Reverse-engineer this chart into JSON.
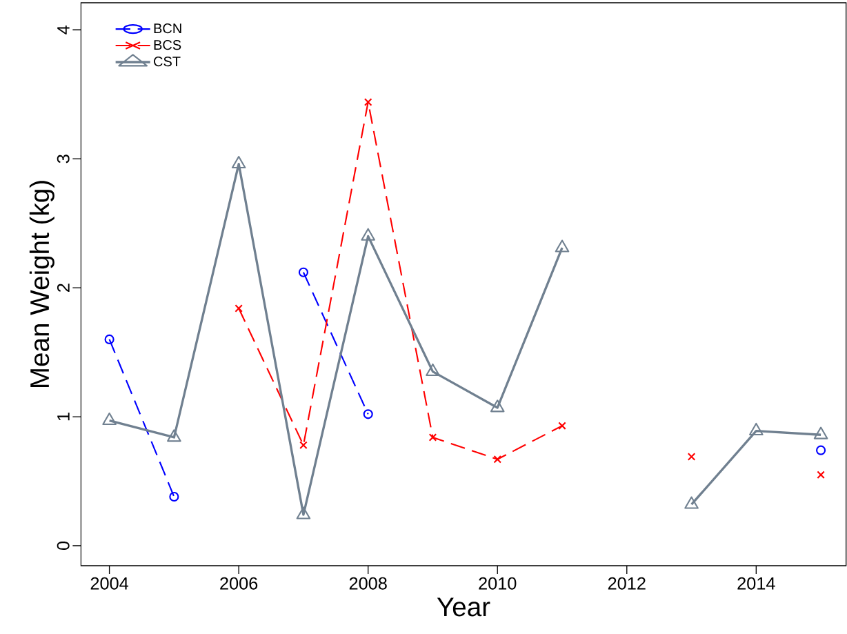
{
  "chart_data": {
    "type": "line",
    "xlabel": "Year",
    "ylabel": "Mean Weight (kg)",
    "x": [
      2004,
      2005,
      2006,
      2007,
      2008,
      2009,
      2010,
      2011,
      2012,
      2013,
      2014,
      2015
    ],
    "series": [
      {
        "name": "BCN",
        "color": "#0000ff",
        "marker": "circle",
        "line_style": "dashed",
        "values": [
          1.6,
          0.38,
          null,
          2.12,
          1.02,
          null,
          null,
          null,
          null,
          null,
          null,
          0.74
        ]
      },
      {
        "name": "BCS",
        "color": "#ff0000",
        "marker": "cross",
        "line_style": "dashed",
        "values": [
          null,
          null,
          1.84,
          0.78,
          3.44,
          0.84,
          0.67,
          0.93,
          null,
          0.69,
          null,
          0.55
        ]
      },
      {
        "name": "CST",
        "color": "#708090",
        "marker": "triangle",
        "line_style": "solid",
        "values": [
          0.97,
          0.84,
          2.96,
          0.24,
          2.4,
          1.35,
          1.07,
          2.31,
          null,
          0.32,
          0.89,
          0.86
        ]
      }
    ],
    "xlim": [
      2003.56,
      2015.39
    ],
    "ylim": [
      -0.155,
      4.21
    ],
    "xticks": [
      2004,
      2006,
      2008,
      2010,
      2012,
      2014
    ],
    "yticks": [
      0,
      1,
      2,
      3,
      4
    ],
    "grid": false,
    "legend": "top left"
  }
}
